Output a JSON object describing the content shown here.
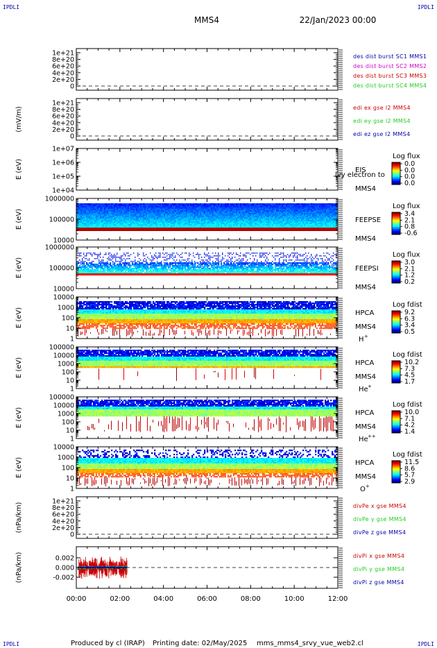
{
  "corner_labels": {
    "top_left": "IPDLI",
    "top_right": "IPDLI",
    "bottom_left": "IPDLI",
    "bottom_right": "IPDLI"
  },
  "header": {
    "spacecraft": "MMS4",
    "date": "22/Jan/2023 00:00"
  },
  "footer": {
    "produced_by": "Produced by cl (IRAP)",
    "printing_date": "Printing date: 02/May/2025",
    "script": "mms_mms4_srvy_vue_web2.cl"
  },
  "colors": {
    "dark_blue": "#0000aa",
    "magenta": "#cc00cc",
    "red": "#cc0000",
    "green": "#22cc22"
  },
  "x_ticks": [
    "00:00",
    "02:00",
    "04:00",
    "06:00",
    "08:00",
    "10:00",
    "12:00"
  ],
  "chart_data": [
    {
      "type": "line",
      "panel": "des_dist_burst",
      "ylabel": "",
      "y_ticks": [
        "1e+21",
        "8e+20",
        "6e+20",
        "4e+20",
        "2e+20",
        "0"
      ],
      "series": [
        {
          "name": "des dist burst SC1 MMS1",
          "color": "#0000aa"
        },
        {
          "name": "des dist burst SC2 MMS2",
          "color": "#cc00cc"
        },
        {
          "name": "des dist burst SC3 MMS3",
          "color": "#cc0000"
        },
        {
          "name": "des dist burst SC4 MMS4",
          "color": "#22cc22"
        }
      ]
    },
    {
      "type": "line",
      "panel": "edi",
      "ylabel": "(mV/m)",
      "y_ticks": [
        "1e+21",
        "8e+20",
        "6e+20",
        "4e+20",
        "2e+20",
        "0"
      ],
      "series": [
        {
          "name": "edi ex gse l2 MMS4",
          "color": "#cc0000"
        },
        {
          "name": "edi ey gse l2 MMS4",
          "color": "#22cc22"
        },
        {
          "name": "edi ez gse l2 MMS4",
          "color": "#0000aa"
        }
      ]
    },
    {
      "type": "heatmap",
      "panel": "eis",
      "ylabel": "E (eV)",
      "y_ticks": [
        "1e+07",
        "1e+06",
        "1e+05",
        "1e+04"
      ],
      "instrument": "EIS",
      "sc": "MMS4",
      "overlay_text": "lvy electron to",
      "colorbar": {
        "title": "Log flux",
        "ticks": [
          "0.0",
          "0.0",
          "0.0",
          "0.0"
        ]
      }
    },
    {
      "type": "heatmap",
      "panel": "feeps_e",
      "ylabel": "E (eV)",
      "y_ticks": [
        "1000000",
        "100000",
        "10000"
      ],
      "instrument": "FEEPSE",
      "sc": "MMS4",
      "colorbar": {
        "title": "Log flux",
        "ticks": [
          "3.4",
          "2.1",
          "0.8",
          "-0.6"
        ]
      }
    },
    {
      "type": "heatmap",
      "panel": "feeps_i",
      "ylabel": "E (eV)",
      "y_ticks": [
        "1000000",
        "100000",
        "10000"
      ],
      "instrument": "FEEPSI",
      "sc": "MMS4",
      "colorbar": {
        "title": "Log flux",
        "ticks": [
          "3.0",
          "2.1",
          "1.2",
          "0.2"
        ]
      }
    },
    {
      "type": "heatmap",
      "panel": "hpca_h",
      "ylabel": "E (eV)",
      "y_ticks": [
        "10000",
        "1000",
        "100",
        "10",
        "1"
      ],
      "instrument": "HPCA",
      "sc": "MMS4",
      "species": "H",
      "charge": "+",
      "colorbar": {
        "title": "Log fdist",
        "ticks": [
          "9.2",
          "6.3",
          "3.4",
          "0.5"
        ]
      }
    },
    {
      "type": "heatmap",
      "panel": "hpca_he1",
      "ylabel": "E (eV)",
      "y_ticks": [
        "100000",
        "10000",
        "1000",
        "100",
        "10",
        "1"
      ],
      "instrument": "HPCA",
      "sc": "MMS4",
      "species": "He",
      "charge": "+",
      "colorbar": {
        "title": "Log fdist",
        "ticks": [
          "10.2",
          "7.3",
          "4.5",
          "1.7"
        ]
      }
    },
    {
      "type": "heatmap",
      "panel": "hpca_he2",
      "ylabel": "E (eV)",
      "y_ticks": [
        "100000",
        "10000",
        "1000",
        "100",
        "10",
        "1"
      ],
      "instrument": "HPCA",
      "sc": "MMS4",
      "species": "He",
      "charge": "++",
      "colorbar": {
        "title": "Log fdist",
        "ticks": [
          "10.0",
          "7.1",
          "4.2",
          "1.4"
        ]
      }
    },
    {
      "type": "heatmap",
      "panel": "hpca_o",
      "ylabel": "E (eV)",
      "y_ticks": [
        "10000",
        "1000",
        "100",
        "10",
        "1"
      ],
      "instrument": "HPCA",
      "sc": "MMS4",
      "species": "O",
      "charge": "+",
      "colorbar": {
        "title": "Log fdist",
        "ticks": [
          "11.5",
          "8.6",
          "5.7",
          "2.9"
        ]
      }
    },
    {
      "type": "line",
      "panel": "divpe",
      "ylabel": "(nPa/km)",
      "y_ticks": [
        "1e+21",
        "8e+20",
        "6e+20",
        "4e+20",
        "2e+20",
        "0"
      ],
      "series": [
        {
          "name": "divPe x gse MMS4",
          "color": "#cc0000"
        },
        {
          "name": "divPe y gse MMS4",
          "color": "#22cc22"
        },
        {
          "name": "divPe z gse MMS4",
          "color": "#0000aa"
        }
      ]
    },
    {
      "type": "line",
      "panel": "divpi",
      "ylabel": "(nPa/km)",
      "y_ticks": [
        "0.002",
        "0.000",
        "-0.002"
      ],
      "xlim": [
        "00:00",
        "12:00"
      ],
      "data_end": "02:20",
      "series": [
        {
          "name": "divPi x gse MMS4",
          "color": "#cc0000",
          "amplitude": 0.0025
        },
        {
          "name": "divPi y gse MMS4",
          "color": "#22cc22",
          "amplitude": 0.0004
        },
        {
          "name": "divPi z gse MMS4",
          "color": "#0000aa",
          "amplitude": 0.0002
        }
      ]
    }
  ]
}
